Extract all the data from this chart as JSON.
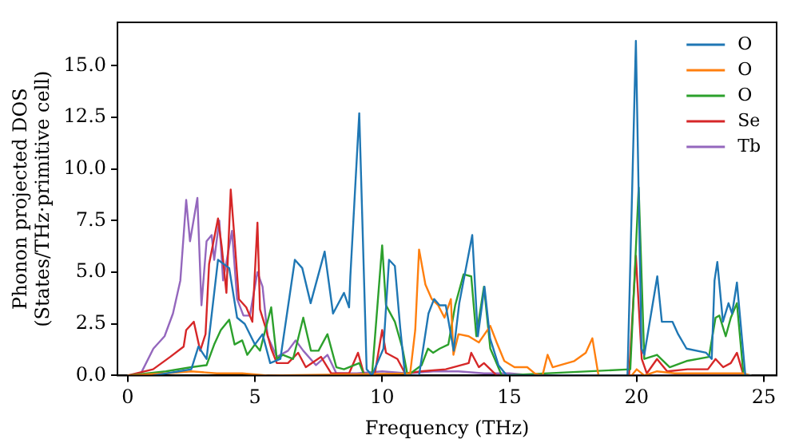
{
  "chart_data": {
    "type": "line",
    "xlabel": "Frequency (THz)",
    "ylabel": "Phonon projected DOS\n(States/THz·primitive cell)",
    "xlim": [
      -0.4,
      25.5
    ],
    "xticks": [
      0,
      5,
      10,
      15,
      20,
      25
    ],
    "ylim": [
      0,
      17.1
    ],
    "yticks": [
      {
        "value": 0,
        "label": "0.0"
      },
      {
        "value": 2.5,
        "label": "2.5"
      },
      {
        "value": 5,
        "label": "5.0"
      },
      {
        "value": 7.5,
        "label": "7.5"
      },
      {
        "value": 10,
        "label": "10.0"
      },
      {
        "value": 12.5,
        "label": "12.5"
      },
      {
        "value": 15,
        "label": "15.0"
      }
    ],
    "grid": false,
    "legend": "top right",
    "marker": "none",
    "line_style": "solid",
    "series": [
      {
        "name": "O",
        "color": "#1f77b4",
        "x": [
          1,
          1.5,
          2,
          2.5,
          2.78,
          3.1,
          3.55,
          3.99,
          4.3,
          4.6,
          5,
          5.3,
          5.6,
          6,
          6.57,
          6.86,
          7.19,
          7.74,
          8.07,
          8.5,
          8.7,
          8.75,
          9.1,
          9.39,
          9.6,
          10.05,
          10.27,
          10.5,
          10.71,
          10.9,
          11.45,
          11.82,
          12.04,
          12.26,
          12.5,
          12.81,
          13.03,
          13.54,
          13.76,
          14.02,
          14.24,
          14.57,
          14.9,
          19.64,
          19.97,
          20.19,
          20.3,
          20.81,
          20.99,
          21.41,
          21.63,
          21.96,
          22.73,
          22.95,
          23.06,
          23.17,
          23.39,
          23.61,
          23.75,
          23.94,
          24.27,
          24.5
        ],
        "values": [
          0,
          0.1,
          0.2,
          0.3,
          1.4,
          0.8,
          5.6,
          5.2,
          2.8,
          2.5,
          1.5,
          2,
          0.6,
          0.8,
          5.6,
          5.2,
          3.5,
          6,
          3,
          4,
          3.3,
          4.8,
          12.7,
          0.3,
          0,
          1.3,
          5.6,
          5.3,
          2.3,
          0,
          0,
          3,
          3.7,
          3.4,
          3.4,
          1.2,
          3.5,
          6.8,
          1.9,
          4.3,
          1.8,
          0.5,
          0,
          0,
          16.2,
          1.3,
          1,
          4.8,
          2.6,
          2.6,
          2,
          1.3,
          1.1,
          0.8,
          4.6,
          5.5,
          2.6,
          3.5,
          3,
          4.5,
          0,
          0
        ]
      },
      {
        "name": "O",
        "color": "#ff7f0e",
        "x": [
          0,
          1.5,
          2.5,
          3.5,
          4.5,
          5.5,
          11.1,
          11.3,
          11.45,
          11.7,
          11.95,
          12.2,
          12.45,
          12.7,
          12.8,
          13,
          13.4,
          13.8,
          14.25,
          14.5,
          14.8,
          15.2,
          15.7,
          16,
          16.3,
          16.5,
          16.7,
          17.55,
          18,
          18.26,
          18.5,
          19.8,
          20,
          20.3,
          20.8,
          21.5,
          24.2,
          24.5
        ],
        "values": [
          0,
          0.1,
          0.2,
          0.1,
          0.1,
          0,
          0.1,
          2.2,
          6.1,
          4.4,
          3.7,
          3.4,
          2.8,
          3.7,
          1,
          2,
          1.9,
          1.6,
          2.4,
          1.6,
          0.7,
          0.4,
          0.4,
          0.1,
          0,
          1,
          0.4,
          0.7,
          1.1,
          1.8,
          0,
          0,
          0.3,
          0,
          0.2,
          0.1,
          0.1,
          0
        ]
      },
      {
        "name": "O",
        "color": "#2ca02c",
        "x": [
          0,
          1.5,
          2.5,
          3.1,
          3.4,
          3.66,
          3.99,
          4.2,
          4.5,
          4.7,
          5,
          5.2,
          5.64,
          5.86,
          6.1,
          6.5,
          6.9,
          7.2,
          7.5,
          7.85,
          8.2,
          8.5,
          9.1,
          9.3,
          9.6,
          10,
          10.15,
          10.5,
          10.8,
          11,
          11.55,
          11.8,
          12,
          12.26,
          12.6,
          12.87,
          13.2,
          13.5,
          13.7,
          14,
          14.25,
          14.7,
          19.75,
          20.08,
          20.3,
          20.8,
          21.3,
          21.96,
          22.84,
          23.1,
          23.25,
          23.5,
          23.7,
          23.94,
          24.2
        ],
        "values": [
          0,
          0.2,
          0.4,
          0.5,
          1.5,
          2.2,
          2.7,
          1.5,
          1.7,
          1,
          1.5,
          1.2,
          3.3,
          0.8,
          1,
          0.8,
          2.8,
          1.2,
          1.2,
          2,
          0.4,
          0.3,
          0.6,
          0,
          0,
          6.3,
          3.4,
          2.6,
          1.3,
          0,
          0.5,
          1.3,
          1.1,
          1.3,
          1.5,
          3.4,
          4.9,
          4.8,
          1.9,
          4.3,
          1.3,
          0,
          0.3,
          9.1,
          0.8,
          1,
          0.4,
          0.7,
          0.9,
          2.8,
          2.9,
          1.9,
          2.8,
          3.5,
          0
        ]
      },
      {
        "name": "Se",
        "color": "#d62728",
        "x": [
          0,
          1,
          1.67,
          2.2,
          2.3,
          2.6,
          2.85,
          3.06,
          3.2,
          3.55,
          3.7,
          3.88,
          4.05,
          4.2,
          4.37,
          4.66,
          4.9,
          5.1,
          5.2,
          5.4,
          5.64,
          5.86,
          6.3,
          6.7,
          7,
          7.6,
          8,
          8.7,
          9.05,
          9.3,
          9.7,
          10,
          10.15,
          10.6,
          10.9,
          11.5,
          12.5,
          13.4,
          13.5,
          13.8,
          14,
          14.5,
          19.7,
          19.97,
          20.2,
          20.4,
          20.8,
          21.2,
          22,
          22.8,
          23.1,
          23.4,
          23.7,
          23.94,
          24.2
        ],
        "values": [
          0,
          0.3,
          0.9,
          1.4,
          2.2,
          2.6,
          1.2,
          2,
          5.4,
          7.6,
          6.2,
          4,
          9,
          6.6,
          3.7,
          3.3,
          2.6,
          7.4,
          3.2,
          2.4,
          1.3,
          0.6,
          0.6,
          1.1,
          0.4,
          0.9,
          0.1,
          0.1,
          1.1,
          0,
          0,
          2.2,
          1.1,
          0.8,
          0.1,
          0.2,
          0.3,
          0.6,
          1.1,
          0.4,
          0.6,
          0,
          0,
          5.8,
          0.8,
          0.1,
          0.8,
          0.2,
          0.3,
          0.3,
          0.8,
          0.4,
          0.6,
          1.1,
          0
        ]
      },
      {
        "name": "Tb",
        "color": "#9467bd",
        "x": [
          0,
          0.5,
          1.01,
          1.45,
          1.78,
          2.07,
          2.3,
          2.45,
          2.74,
          2.9,
          3.1,
          3.3,
          3.4,
          3.6,
          3.75,
          4.1,
          4.3,
          4.55,
          4.8,
          5.1,
          5.3,
          5.5,
          5.86,
          6.3,
          6.6,
          6.9,
          7.4,
          7.85,
          8.2,
          9,
          10,
          11,
          12,
          13,
          14,
          15,
          16,
          24.5
        ],
        "values": [
          0,
          0.05,
          1.3,
          1.9,
          3,
          4.6,
          8.5,
          6.5,
          8.6,
          3.4,
          6.5,
          6.8,
          5.6,
          7.5,
          4.6,
          7,
          3.7,
          2.9,
          2.9,
          5,
          4.3,
          1.9,
          0.9,
          1.2,
          1.7,
          1.2,
          0.5,
          1,
          0.1,
          0.1,
          0.2,
          0.1,
          0.2,
          0.2,
          0.1,
          0.1,
          0,
          0
        ]
      }
    ]
  }
}
